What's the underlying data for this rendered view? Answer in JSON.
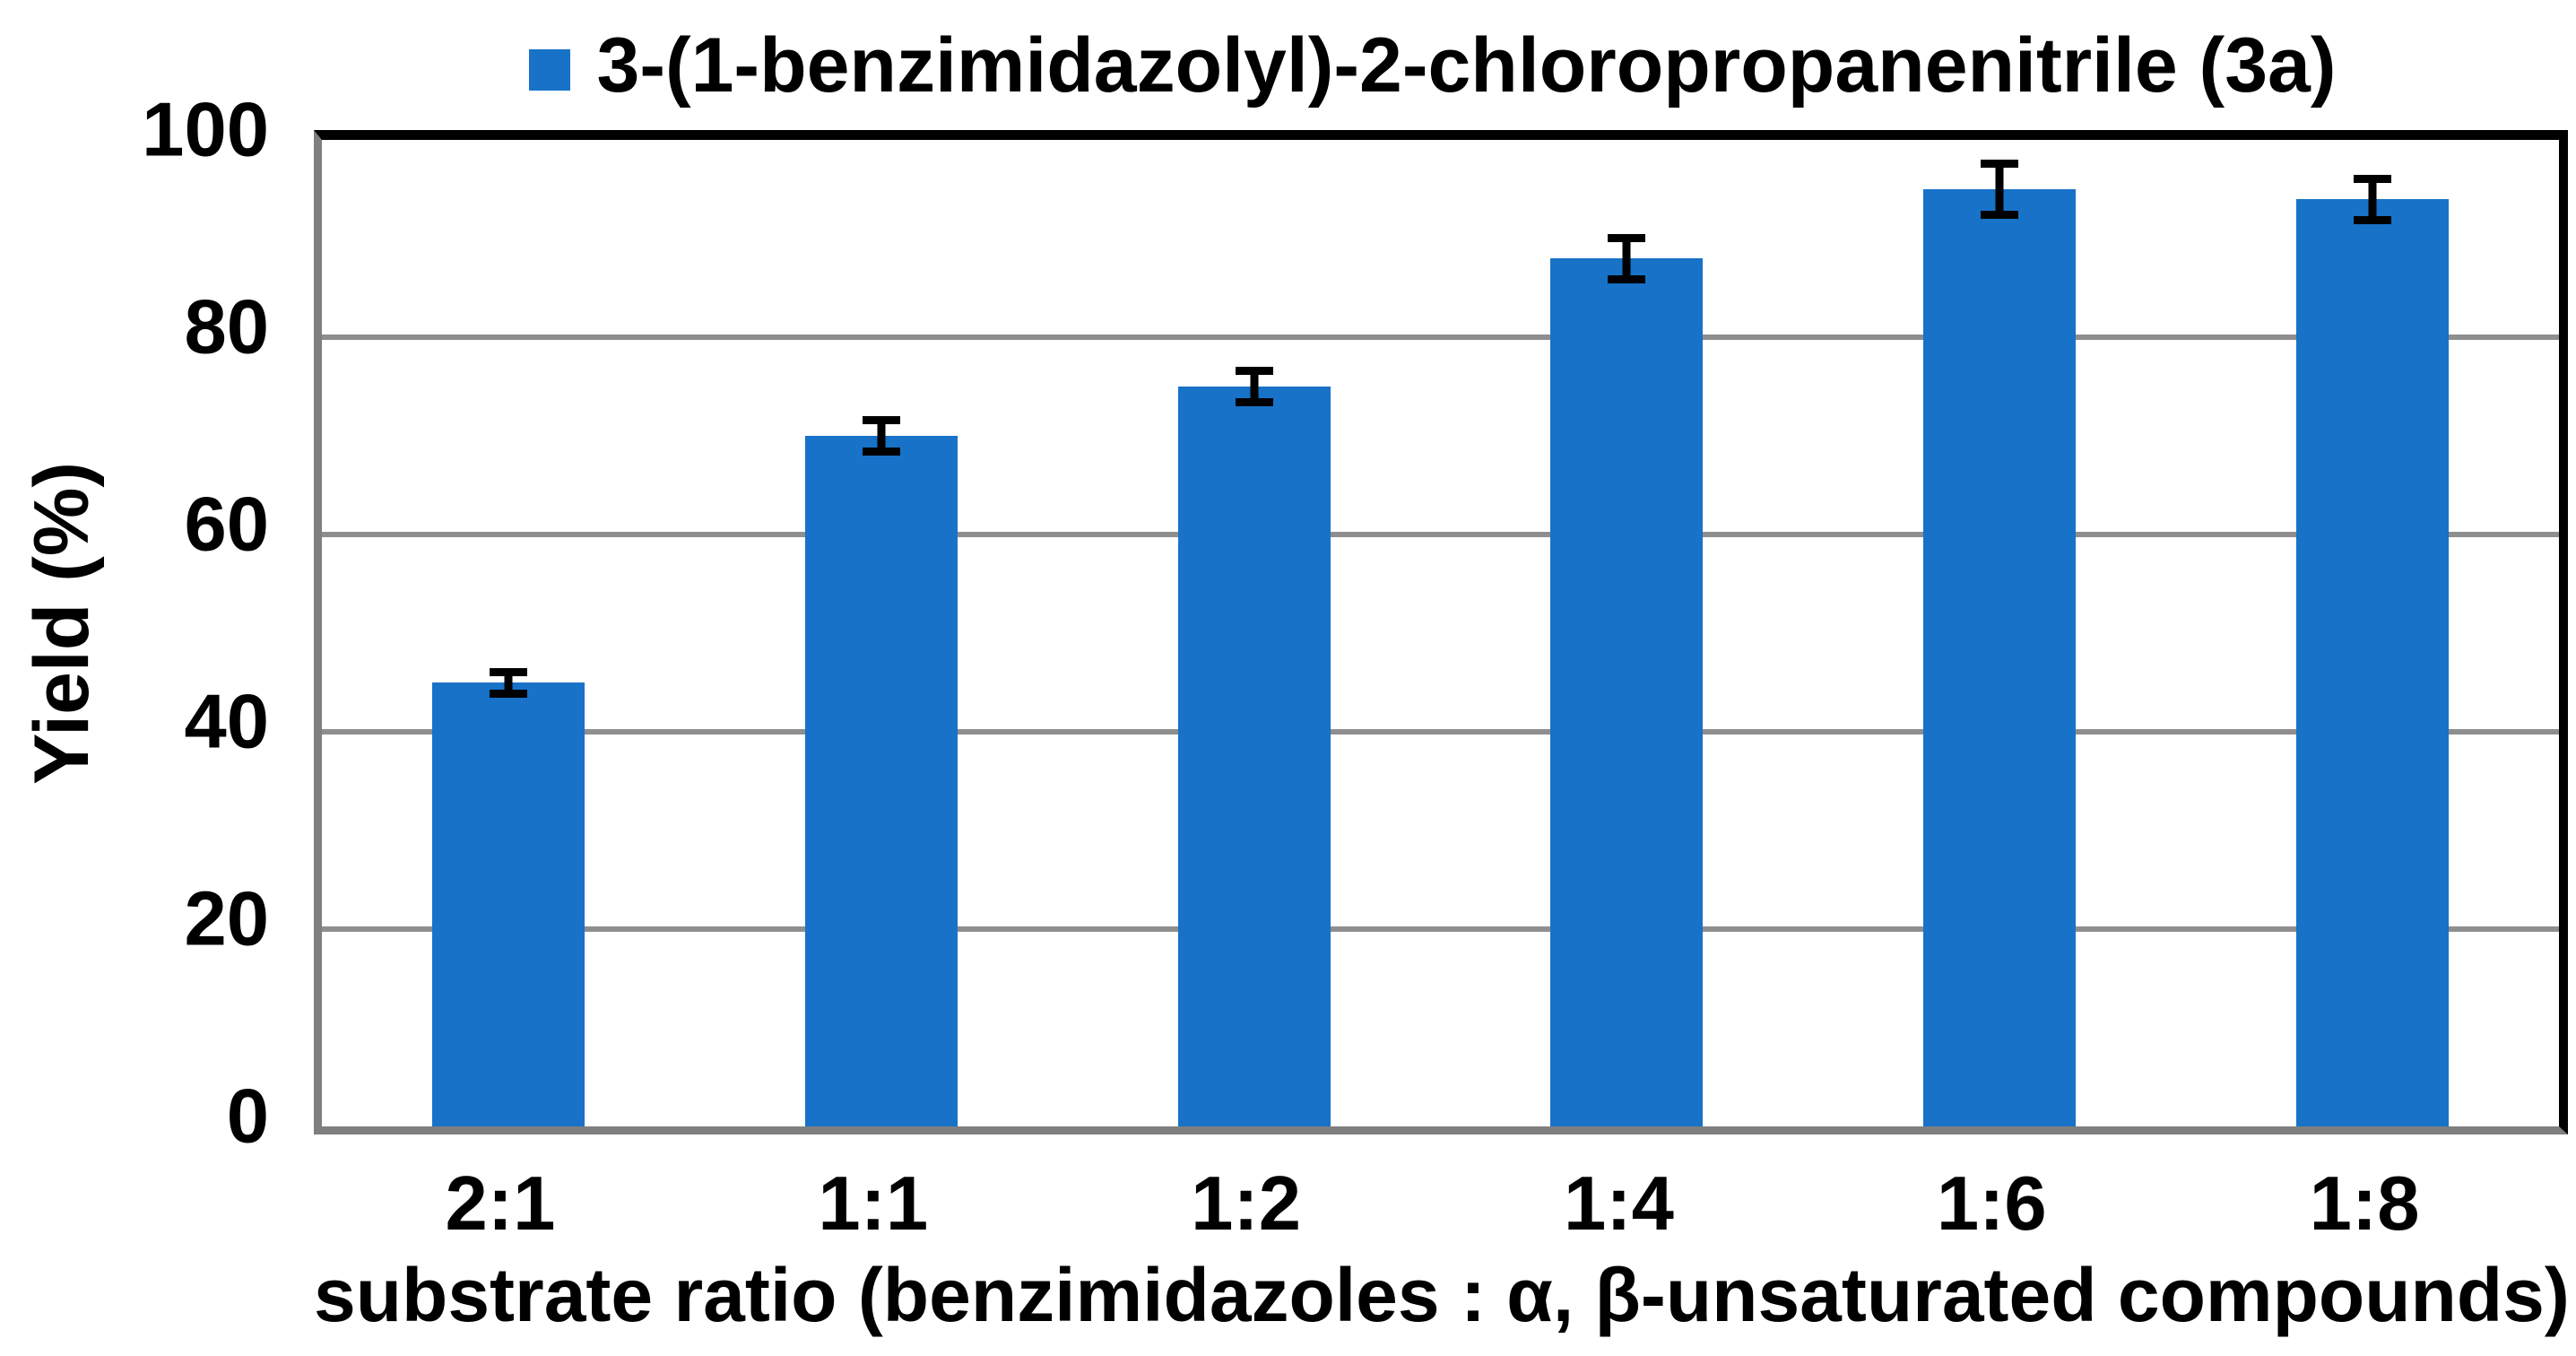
{
  "legend": {
    "label": "3-(1-benzimidazolyl)-2-chloropropanenitrile (3a)"
  },
  "chart_data": {
    "type": "bar",
    "title": "3-(1-benzimidazolyl)-2-chloropropanenitrile (3a)",
    "categories": [
      "2:1",
      "1:1",
      "1:2",
      "1:4",
      "1:6",
      "1:8"
    ],
    "series": [
      {
        "name": "3-(1-benzimidazolyl)-2-chloropropanenitrile (3a)",
        "values": [
          45,
          70,
          75,
          88,
          95,
          94
        ],
        "errors": [
          1.5,
          2,
          2,
          2.5,
          3,
          2.5
        ]
      }
    ],
    "xlabel": "substrate ratio (benzimidazoles : α, β-unsaturated compounds)",
    "ylabel": "Yield (%)",
    "ylim": [
      0,
      100
    ],
    "yticks": [
      0,
      20,
      40,
      60,
      80,
      100
    ],
    "grid": true,
    "legend_position": "top",
    "colors": {
      "bar": "#1772C8",
      "grid": "#8E8E8E",
      "axis": "#7F7F7F",
      "plot_border": "#000000",
      "text": "#000000",
      "background": "#FFFFFF"
    }
  }
}
